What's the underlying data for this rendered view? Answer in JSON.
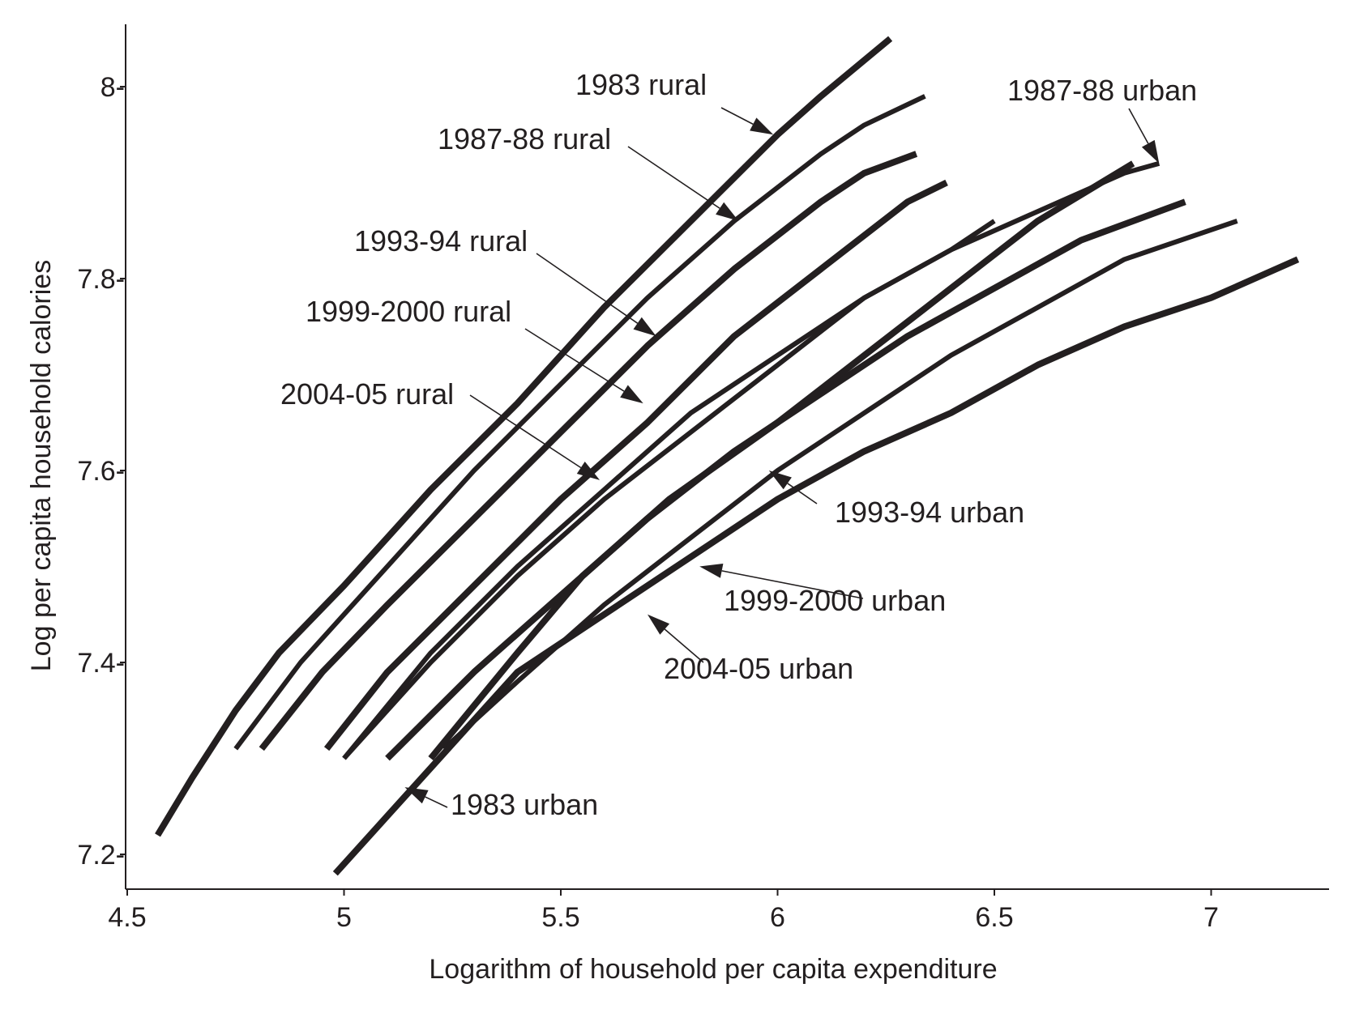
{
  "chart_data": {
    "type": "line",
    "xlabel": "Logarithm  of household per capita expenditure",
    "ylabel": "Log per capita household calories",
    "xlim": [
      4.5,
      7.2
    ],
    "ylim": [
      7.16,
      8.07
    ],
    "xticks": [
      4.5,
      5,
      5.5,
      6,
      6.5,
      7
    ],
    "xtick_labels": [
      "4.5",
      "5",
      "5.5",
      "6",
      "6.5",
      "7"
    ],
    "yticks": [
      7.2,
      7.4,
      7.6,
      7.8,
      8.0
    ],
    "ytick_labels": [
      "7.2-",
      "7.4-",
      "7.6-",
      "7.8-",
      "8-"
    ],
    "grid": false,
    "legend": "none",
    "series": [
      {
        "name": "1983 rural",
        "weight": "heavy",
        "points": [
          [
            4.57,
            7.22
          ],
          [
            4.65,
            7.28
          ],
          [
            4.75,
            7.35
          ],
          [
            4.85,
            7.41
          ],
          [
            5.0,
            7.48
          ],
          [
            5.2,
            7.58
          ],
          [
            5.4,
            7.67
          ],
          [
            5.6,
            7.77
          ],
          [
            5.8,
            7.86
          ],
          [
            6.0,
            7.95
          ],
          [
            6.1,
            7.99
          ],
          [
            6.26,
            8.05
          ]
        ]
      },
      {
        "name": "1987-88 rural",
        "weight": "medium",
        "points": [
          [
            4.75,
            7.31
          ],
          [
            4.9,
            7.4
          ],
          [
            5.1,
            7.5
          ],
          [
            5.3,
            7.6
          ],
          [
            5.5,
            7.69
          ],
          [
            5.7,
            7.78
          ],
          [
            5.9,
            7.86
          ],
          [
            6.1,
            7.93
          ],
          [
            6.2,
            7.96
          ],
          [
            6.34,
            7.99
          ]
        ]
      },
      {
        "name": "1993-94 rural",
        "weight": "heavy",
        "points": [
          [
            4.81,
            7.31
          ],
          [
            4.95,
            7.39
          ],
          [
            5.1,
            7.46
          ],
          [
            5.3,
            7.55
          ],
          [
            5.5,
            7.64
          ],
          [
            5.7,
            7.73
          ],
          [
            5.9,
            7.81
          ],
          [
            6.1,
            7.88
          ],
          [
            6.2,
            7.91
          ],
          [
            6.32,
            7.93
          ]
        ]
      },
      {
        "name": "1999-2000 rural",
        "weight": "heavy",
        "points": [
          [
            4.96,
            7.31
          ],
          [
            5.1,
            7.39
          ],
          [
            5.3,
            7.48
          ],
          [
            5.5,
            7.57
          ],
          [
            5.7,
            7.65
          ],
          [
            5.9,
            7.74
          ],
          [
            6.1,
            7.81
          ],
          [
            6.3,
            7.88
          ],
          [
            6.39,
            7.9
          ]
        ]
      },
      {
        "name": "2004-05 rural",
        "weight": "medium",
        "points": [
          [
            5.0,
            7.3
          ],
          [
            5.2,
            7.41
          ],
          [
            5.4,
            7.5
          ],
          [
            5.6,
            7.58
          ],
          [
            5.8,
            7.66
          ],
          [
            6.0,
            7.72
          ],
          [
            6.2,
            7.78
          ],
          [
            6.4,
            7.83
          ],
          [
            6.5,
            7.86
          ]
        ]
      },
      {
        "name": "1987-88 urban",
        "weight": "medium",
        "points": [
          [
            5.0,
            7.3
          ],
          [
            5.2,
            7.4
          ],
          [
            5.4,
            7.49
          ],
          [
            5.6,
            7.57
          ],
          [
            5.8,
            7.64
          ],
          [
            6.0,
            7.71
          ],
          [
            6.2,
            7.78
          ],
          [
            6.4,
            7.83
          ],
          [
            6.6,
            7.87
          ],
          [
            6.8,
            7.91
          ],
          [
            6.88,
            7.92
          ]
        ]
      },
      {
        "name": "1993-94 urban",
        "weight": "heavy",
        "points": [
          [
            5.1,
            7.3
          ],
          [
            5.3,
            7.39
          ],
          [
            5.5,
            7.47
          ],
          [
            5.7,
            7.55
          ],
          [
            5.9,
            7.62
          ],
          [
            6.1,
            7.68
          ],
          [
            6.3,
            7.74
          ],
          [
            6.5,
            7.79
          ],
          [
            6.7,
            7.84
          ],
          [
            6.94,
            7.88
          ]
        ]
      },
      {
        "name": "1999-2000 urban",
        "weight": "heavy",
        "points": [
          [
            5.2,
            7.3
          ],
          [
            5.4,
            7.41
          ],
          [
            5.55,
            7.49
          ],
          [
            5.75,
            7.57
          ],
          [
            6.0,
            7.65
          ],
          [
            6.2,
            7.72
          ],
          [
            6.4,
            7.79
          ],
          [
            6.6,
            7.86
          ],
          [
            6.82,
            7.92
          ]
        ]
      },
      {
        "name": "2004-05 urban",
        "weight": "medium",
        "points": [
          [
            5.23,
            7.31
          ],
          [
            5.4,
            7.38
          ],
          [
            5.6,
            7.46
          ],
          [
            5.8,
            7.53
          ],
          [
            6.0,
            7.6
          ],
          [
            6.2,
            7.66
          ],
          [
            6.4,
            7.72
          ],
          [
            6.6,
            7.77
          ],
          [
            6.8,
            7.82
          ],
          [
            7.06,
            7.86
          ]
        ]
      },
      {
        "name": "1983 urban",
        "weight": "heavy",
        "points": [
          [
            4.98,
            7.18
          ],
          [
            5.1,
            7.24
          ],
          [
            5.3,
            7.34
          ],
          [
            5.4,
            7.39
          ],
          [
            5.6,
            7.45
          ],
          [
            5.8,
            7.51
          ],
          [
            6.0,
            7.57
          ],
          [
            6.2,
            7.62
          ],
          [
            6.4,
            7.66
          ],
          [
            6.6,
            7.71
          ],
          [
            6.8,
            7.75
          ],
          [
            7.0,
            7.78
          ],
          [
            7.2,
            7.82
          ]
        ]
      }
    ],
    "annotations": [
      {
        "text": "1983 rural",
        "target": [
          5.99,
          7.95
        ]
      },
      {
        "text": "1987-88 rural",
        "target": [
          5.91,
          7.86
        ]
      },
      {
        "text": "1993-94 rural",
        "target": [
          5.72,
          7.74
        ]
      },
      {
        "text": "1999-2000 rural",
        "target": [
          5.69,
          7.67
        ]
      },
      {
        "text": "2004-05 rural",
        "target": [
          5.59,
          7.59
        ]
      },
      {
        "text": "1987-88 urban",
        "target": [
          6.88,
          7.92
        ]
      },
      {
        "text": "1993-94 urban",
        "target": [
          5.98,
          7.6
        ]
      },
      {
        "text": "1999-2000 urban",
        "target": [
          5.82,
          7.5
        ]
      },
      {
        "text": "2004-05 urban",
        "target": [
          5.7,
          7.45
        ]
      },
      {
        "text": "1983 urban",
        "target": [
          5.14,
          7.27
        ]
      }
    ]
  }
}
